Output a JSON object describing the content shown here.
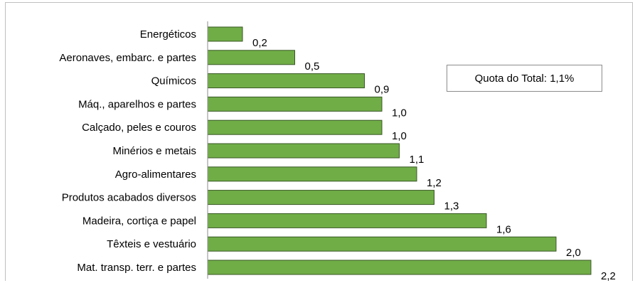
{
  "annotation": {
    "text": "Quota do Total: 1,1%"
  },
  "colors": {
    "bar_fill": "#70ad47",
    "bar_stroke": "#385723",
    "axis": "#8c8c8c"
  },
  "chart_data": {
    "type": "bar",
    "orientation": "horizontal",
    "title": "",
    "xlabel": "",
    "ylabel": "",
    "categories": [
      "Energéticos",
      "Aeronaves, embarc. e partes",
      "Químicos",
      "Máq., aparelhos e partes",
      "Calçado, peles e couros",
      "Minérios e metais",
      "Agro-alimentares",
      "Produtos acabados diversos",
      "Madeira, cortiça e papel",
      "Têxteis e vestuário",
      "Mat. transp. terr. e partes"
    ],
    "values": [
      0.2,
      0.5,
      0.9,
      1.0,
      1.0,
      1.1,
      1.2,
      1.3,
      1.6,
      2.0,
      2.2
    ],
    "value_labels": [
      "0,2",
      "0,5",
      "0,9",
      "1,0",
      "1,0",
      "1,1",
      "1,2",
      "1,3",
      "1,6",
      "2,0",
      "2,2"
    ],
    "xlim": [
      0,
      2.2
    ],
    "grid": false,
    "legend": "none"
  }
}
